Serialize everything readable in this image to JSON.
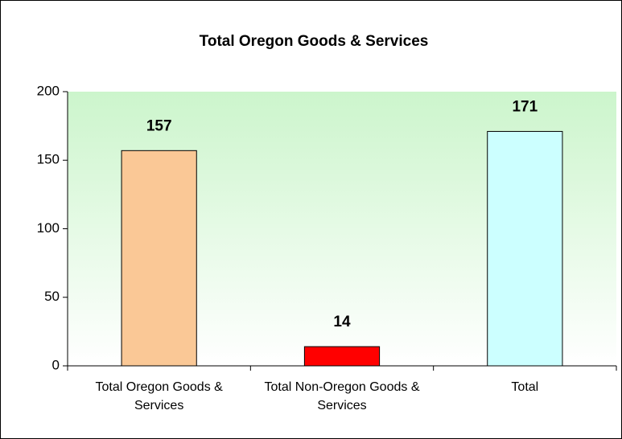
{
  "chart_data": {
    "type": "bar",
    "title": "Total Oregon Goods & Services",
    "categories": [
      "Total Oregon Goods & Services",
      "Total Non-Oregon Goods & Services",
      "Total"
    ],
    "values": [
      157,
      14,
      171
    ],
    "colors": [
      "#fac896",
      "#ff0000",
      "#ccffff"
    ],
    "ylim": [
      0,
      200
    ],
    "yticks": [
      0,
      50,
      100,
      150,
      200
    ],
    "grid": false
  }
}
